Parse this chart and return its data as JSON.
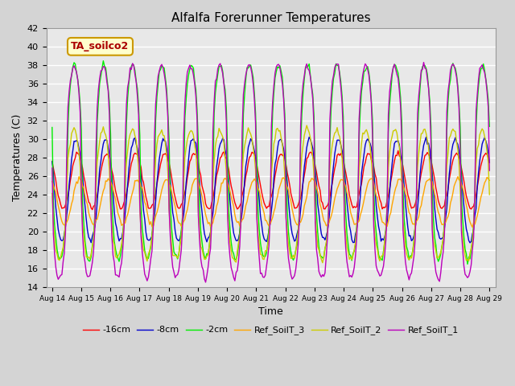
{
  "title": "Alfalfa Forerunner Temperatures",
  "xlabel": "Time",
  "ylabel": "Temperatures (C)",
  "ylim": [
    14,
    42
  ],
  "annotation": "TA_soilco2",
  "series": [
    {
      "label": "-16cm",
      "color": "#ff0000"
    },
    {
      "label": "-8cm",
      "color": "#0000cc"
    },
    {
      "label": "-2cm",
      "color": "#00ee00"
    },
    {
      "label": "Ref_SoilT_3",
      "color": "#ffa500"
    },
    {
      "label": "Ref_SoilT_2",
      "color": "#cccc00"
    },
    {
      "label": "Ref_SoilT_1",
      "color": "#bb00bb"
    }
  ],
  "xtick_labels": [
    "Aug 14",
    "Aug 15",
    "Aug 16",
    "Aug 17",
    "Aug 18",
    "Aug 19",
    "Aug 20",
    "Aug 21",
    "Aug 22",
    "Aug 23",
    "Aug 24",
    "Aug 25",
    "Aug 26",
    "Aug 27",
    "Aug 28",
    "Aug 29"
  ],
  "ytick_values": [
    14,
    16,
    18,
    20,
    22,
    24,
    26,
    28,
    30,
    32,
    34,
    36,
    38,
    40,
    42
  ],
  "fig_facecolor": "#d4d4d4",
  "ax_facecolor": "#e8e8e8"
}
